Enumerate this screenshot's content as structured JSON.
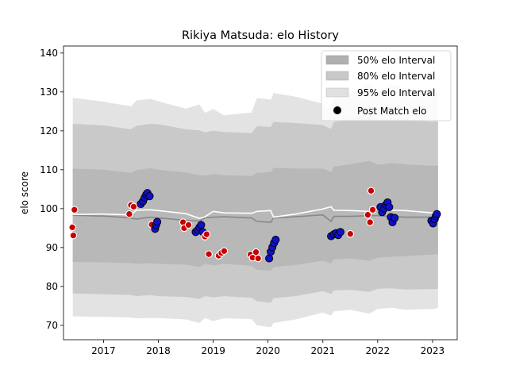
{
  "chart_data": {
    "type": "line",
    "title": "Rikiya Matsuda: elo History",
    "xlabel": "",
    "ylabel": "elo score",
    "xlim": [
      2016.27,
      2023.45
    ],
    "ylim": [
      66.3,
      141.8
    ],
    "x_ticks": [
      2017,
      2018,
      2019,
      2020,
      2021,
      2022,
      2023
    ],
    "x_tick_labels": [
      "2017",
      "2018",
      "2019",
      "2020",
      "2021",
      "2022",
      "2023"
    ],
    "y_ticks": [
      70,
      80,
      90,
      100,
      110,
      120,
      130,
      140
    ],
    "y_tick_labels": [
      "70",
      "80",
      "90",
      "100",
      "110",
      "120",
      "130",
      "140"
    ],
    "grid": false,
    "legend": {
      "placement": "top-right",
      "entries": [
        {
          "label": "50% elo Interval",
          "color": "#b0b0b0"
        },
        {
          "label": "80% elo Interval",
          "color": "#c8c8c8"
        },
        {
          "label": "95% elo Interval",
          "color": "#e0e0e0"
        },
        {
          "label": "Post Match elo",
          "color": "#000000"
        }
      ]
    },
    "colors": {
      "band95": "#e3e3e3",
      "band80": "#c9c9c9",
      "band50": "#b8b8b8",
      "mean_line": "#888888",
      "white_line": "#ffffff",
      "win_marker": "#1010c8",
      "loss_marker": "#c80000"
    },
    "bands": {
      "x": [
        2016.44,
        2017.0,
        2017.5,
        2017.6,
        2017.85,
        2018.0,
        2018.5,
        2018.75,
        2018.85,
        2019.0,
        2019.2,
        2019.7,
        2019.8,
        2020.05,
        2020.1,
        2020.5,
        2021.0,
        2021.15,
        2021.2,
        2021.5,
        2021.85,
        2022.0,
        2022.25,
        2022.5,
        2023.0,
        2023.1
      ],
      "p95_upper": [
        128.5,
        127.5,
        126.3,
        127.8,
        128.2,
        127.6,
        125.7,
        126.8,
        124.6,
        125.6,
        124.0,
        124.7,
        128.5,
        128.0,
        129.7,
        128.8,
        127.0,
        125.0,
        128.5,
        129.5,
        132.5,
        129.8,
        132.0,
        131.0,
        130.0,
        130.2
      ],
      "p95_lower": [
        72.3,
        72.2,
        72.0,
        71.8,
        71.9,
        71.9,
        71.5,
        70.6,
        71.9,
        71.1,
        71.8,
        71.6,
        70.0,
        69.5,
        70.6,
        71.5,
        73.3,
        72.5,
        73.6,
        74.0,
        73.0,
        74.2,
        74.5,
        74.0,
        74.2,
        74.5
      ],
      "p80_upper": [
        121.8,
        121.4,
        120.4,
        121.3,
        121.8,
        121.7,
        120.4,
        120.1,
        119.6,
        120.0,
        119.7,
        119.4,
        121.2,
        121.0,
        122.3,
        122.0,
        121.5,
        120.5,
        122.3,
        123.0,
        124.5,
        122.8,
        123.3,
        122.8,
        122.3,
        122.4
      ],
      "p80_lower": [
        78.2,
        78.0,
        77.8,
        77.5,
        77.8,
        77.5,
        77.3,
        76.8,
        77.5,
        77.2,
        77.5,
        77.1,
        76.2,
        75.8,
        77.0,
        77.5,
        78.8,
        78.1,
        79.0,
        79.1,
        78.6,
        79.4,
        79.5,
        79.2,
        79.3,
        79.4
      ],
      "p50_upper": [
        110.3,
        110.0,
        109.2,
        109.9,
        110.4,
        110.0,
        109.3,
        108.6,
        108.5,
        108.9,
        108.6,
        108.4,
        109.2,
        109.4,
        110.5,
        110.3,
        110.3,
        109.4,
        110.8,
        111.4,
        112.3,
        111.3,
        111.7,
        111.4,
        111.0,
        111.1
      ],
      "p50_lower": [
        86.3,
        86.2,
        86.0,
        85.8,
        86.0,
        85.8,
        85.6,
        85.0,
        85.8,
        85.4,
        85.8,
        85.3,
        84.3,
        84.0,
        85.0,
        85.5,
        86.6,
        85.9,
        86.9,
        87.2,
        86.6,
        87.4,
        87.6,
        87.8,
        88.2,
        88.3
      ]
    },
    "mean_line": {
      "x": [
        2016.44,
        2017.0,
        2017.5,
        2017.6,
        2017.85,
        2018.0,
        2018.5,
        2018.75,
        2018.85,
        2019.0,
        2019.2,
        2019.7,
        2019.8,
        2020.05,
        2020.1,
        2020.5,
        2021.0,
        2021.15,
        2021.2,
        2021.5,
        2021.85,
        2022.0,
        2022.25,
        2022.5,
        2023.0,
        2023.1
      ],
      "y": [
        98.3,
        98.1,
        97.6,
        97.3,
        97.8,
        97.6,
        97.0,
        96.8,
        97.6,
        97.8,
        97.9,
        97.6,
        96.7,
        96.5,
        97.6,
        97.9,
        98.4,
        96.7,
        98.0,
        98.0,
        98.2,
        98.2,
        98.0,
        97.8,
        97.8,
        97.8
      ]
    },
    "white_line": {
      "x": [
        2016.44,
        2017.0,
        2017.5,
        2017.6,
        2017.85,
        2018.0,
        2018.5,
        2018.75,
        2018.85,
        2019.0,
        2019.2,
        2019.7,
        2019.8,
        2020.05,
        2020.1,
        2020.5,
        2021.0,
        2021.15,
        2021.2,
        2021.5,
        2021.85,
        2022.0,
        2022.25,
        2022.5,
        2023.0,
        2023.1
      ],
      "y": [
        98.5,
        98.6,
        98.4,
        99.6,
        99.7,
        99.5,
        98.7,
        97.5,
        97.9,
        99.3,
        98.9,
        98.8,
        99.3,
        99.5,
        97.8,
        98.6,
        99.9,
        100.5,
        99.6,
        99.5,
        99.3,
        100.0,
        99.6,
        99.5,
        98.9,
        98.7
      ]
    },
    "post_match_points": [
      {
        "x": 2016.43,
        "y": 95.2,
        "result": "loss"
      },
      {
        "x": 2016.45,
        "y": 93.1,
        "result": "loss"
      },
      {
        "x": 2016.47,
        "y": 99.7,
        "result": "loss"
      },
      {
        "x": 2017.47,
        "y": 98.6,
        "result": "loss"
      },
      {
        "x": 2017.5,
        "y": 100.9,
        "result": "loss"
      },
      {
        "x": 2017.55,
        "y": 100.5,
        "result": "loss"
      },
      {
        "x": 2017.68,
        "y": 101.2,
        "result": "win"
      },
      {
        "x": 2017.72,
        "y": 101.9,
        "result": "win"
      },
      {
        "x": 2017.75,
        "y": 102.8,
        "result": "win"
      },
      {
        "x": 2017.78,
        "y": 103.6,
        "result": "win"
      },
      {
        "x": 2017.8,
        "y": 104.0,
        "result": "win"
      },
      {
        "x": 2017.84,
        "y": 103.2,
        "result": "win"
      },
      {
        "x": 2017.88,
        "y": 95.9,
        "result": "loss"
      },
      {
        "x": 2017.94,
        "y": 94.8,
        "result": "win"
      },
      {
        "x": 2017.96,
        "y": 95.8,
        "result": "win"
      },
      {
        "x": 2017.98,
        "y": 96.6,
        "result": "win"
      },
      {
        "x": 2018.45,
        "y": 96.5,
        "result": "loss"
      },
      {
        "x": 2018.47,
        "y": 95.0,
        "result": "loss"
      },
      {
        "x": 2018.55,
        "y": 95.8,
        "result": "loss"
      },
      {
        "x": 2018.68,
        "y": 94.0,
        "result": "win"
      },
      {
        "x": 2018.72,
        "y": 94.5,
        "result": "win"
      },
      {
        "x": 2018.75,
        "y": 95.2,
        "result": "win"
      },
      {
        "x": 2018.78,
        "y": 95.8,
        "result": "win"
      },
      {
        "x": 2018.81,
        "y": 94.0,
        "result": "win"
      },
      {
        "x": 2018.85,
        "y": 92.8,
        "result": "loss"
      },
      {
        "x": 2018.88,
        "y": 93.4,
        "result": "loss"
      },
      {
        "x": 2018.92,
        "y": 88.3,
        "result": "loss"
      },
      {
        "x": 2019.1,
        "y": 87.9,
        "result": "loss"
      },
      {
        "x": 2019.15,
        "y": 88.6,
        "result": "loss"
      },
      {
        "x": 2019.2,
        "y": 89.1,
        "result": "loss"
      },
      {
        "x": 2019.68,
        "y": 88.2,
        "result": "loss"
      },
      {
        "x": 2019.72,
        "y": 87.4,
        "result": "loss"
      },
      {
        "x": 2019.78,
        "y": 88.8,
        "result": "loss"
      },
      {
        "x": 2019.82,
        "y": 87.2,
        "result": "loss"
      },
      {
        "x": 2020.02,
        "y": 87.2,
        "result": "win"
      },
      {
        "x": 2020.05,
        "y": 88.9,
        "result": "win"
      },
      {
        "x": 2020.08,
        "y": 90.1,
        "result": "win"
      },
      {
        "x": 2020.11,
        "y": 91.2,
        "result": "win"
      },
      {
        "x": 2020.14,
        "y": 92.0,
        "result": "win"
      },
      {
        "x": 2021.15,
        "y": 92.9,
        "result": "win"
      },
      {
        "x": 2021.2,
        "y": 93.4,
        "result": "win"
      },
      {
        "x": 2021.24,
        "y": 93.7,
        "result": "win"
      },
      {
        "x": 2021.28,
        "y": 93.2,
        "result": "win"
      },
      {
        "x": 2021.32,
        "y": 94.0,
        "result": "win"
      },
      {
        "x": 2021.5,
        "y": 93.5,
        "result": "loss"
      },
      {
        "x": 2021.82,
        "y": 98.4,
        "result": "loss"
      },
      {
        "x": 2021.86,
        "y": 96.5,
        "result": "loss"
      },
      {
        "x": 2021.88,
        "y": 104.6,
        "result": "loss"
      },
      {
        "x": 2021.91,
        "y": 99.7,
        "result": "loss"
      },
      {
        "x": 2022.05,
        "y": 100.4,
        "result": "win"
      },
      {
        "x": 2022.08,
        "y": 99.1,
        "result": "win"
      },
      {
        "x": 2022.12,
        "y": 100.0,
        "result": "win"
      },
      {
        "x": 2022.15,
        "y": 101.0,
        "result": "win"
      },
      {
        "x": 2022.18,
        "y": 101.6,
        "result": "win"
      },
      {
        "x": 2022.21,
        "y": 100.4,
        "result": "win"
      },
      {
        "x": 2022.24,
        "y": 97.8,
        "result": "win"
      },
      {
        "x": 2022.27,
        "y": 96.5,
        "result": "win"
      },
      {
        "x": 2022.31,
        "y": 97.6,
        "result": "win"
      },
      {
        "x": 2022.98,
        "y": 96.9,
        "result": "win"
      },
      {
        "x": 2023.01,
        "y": 96.2,
        "result": "win"
      },
      {
        "x": 2023.04,
        "y": 97.3,
        "result": "win"
      },
      {
        "x": 2023.06,
        "y": 98.1,
        "result": "win"
      },
      {
        "x": 2023.08,
        "y": 98.6,
        "result": "win"
      }
    ]
  }
}
